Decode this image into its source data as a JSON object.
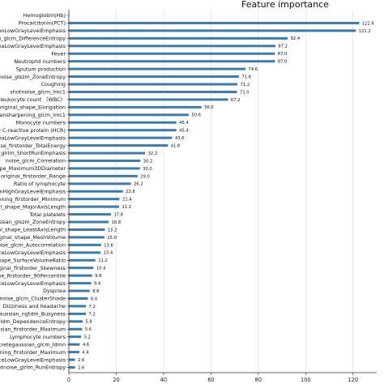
{
  "chart_data": {
    "type": "bar",
    "orientation": "horizontal",
    "title": "Feature importance",
    "xlabel": "",
    "ylabel": "",
    "xlim": [
      0,
      130
    ],
    "xticks": [
      0,
      20,
      40,
      60,
      80,
      100,
      120
    ],
    "grid": true,
    "color": "#3a7bb0",
    "categories": [
      "Hemoglobin(Hb)",
      "Procalcitonin(PCT)",
      "RunLowGrayLevelEmphasis",
      "gan_glcm_DifferenceEntropy",
      "reaLowGrayLevelEmphasis",
      "Fever",
      "Neutrophil numbers",
      "Sputum production",
      "hotnoise_glszm_ZoneEntropy",
      "Coughing",
      "shotnoise_glcm_Imc1",
      "leukocyte count （WBC）",
      "original_shape_Elongation",
      "-ciansharpening_glcm_Imc1",
      "Monocyte numbers",
      "y C-reactive protein (HCR)",
      "reaLowGrayLevelEmphasis",
      "noise_firstorder_TotalEnergy",
      "sal_glrlm_ShortRunEmphasis",
      "noise_glcm_Correlation",
      "shape_Maximum3DDiameter",
      "original_firstorder_Range",
      "Ratio of lymphocyte",
      "unHighGrayLevelEmphasis",
      "pening_firstorder_Minimum",
      "nal_shape_MajorAxisLength",
      "Total platelets",
      "ussian_glszm_ZoneEntropy",
      "nal_shape_LeastAxisLength",
      "riginal_shape_MeshVolume",
      "noise_glcm_Autocorrelation",
      "nceLowGrayLevelEmphasis",
      "shape_SurfaceVolumeRatio",
      "riginal_firstorder_Skewness",
      "oise_firstorder_90Percentile",
      "nceLowGrayLevelEmphasis",
      "Dyspnea",
      "hotnoise_glcm_ClusterShade",
      "Dizziness and headache",
      "gaussian_ngtdm_Busyness",
      "_gldm_DependenceEntropy",
      "aussian_firstorder_Maximum",
      "Lymphocyte numbers",
      "iscretegaussian_glcm_Idmn",
      "ening_firstorder_Maximum",
      "nceLowGrayLevelEmphasis",
      "otnoise_glrlm_RunEntropy"
    ],
    "values": [
      null,
      122.6,
      121.2,
      92.4,
      87.2,
      87.0,
      87.0,
      74.6,
      71.8,
      71.2,
      71.0,
      67.2,
      56.0,
      50.6,
      45.4,
      45.4,
      43.6,
      41.8,
      32.2,
      30.2,
      30.0,
      29.0,
      26.2,
      22.8,
      21.4,
      21.2,
      17.8,
      16.8,
      15.2,
      15.0,
      13.6,
      13.4,
      11.2,
      10.4,
      9.8,
      9.4,
      8.8,
      8.0,
      7.2,
      7.2,
      5.8,
      5.6,
      5.2,
      4.6,
      4.4,
      2.6,
      2.6
    ]
  }
}
